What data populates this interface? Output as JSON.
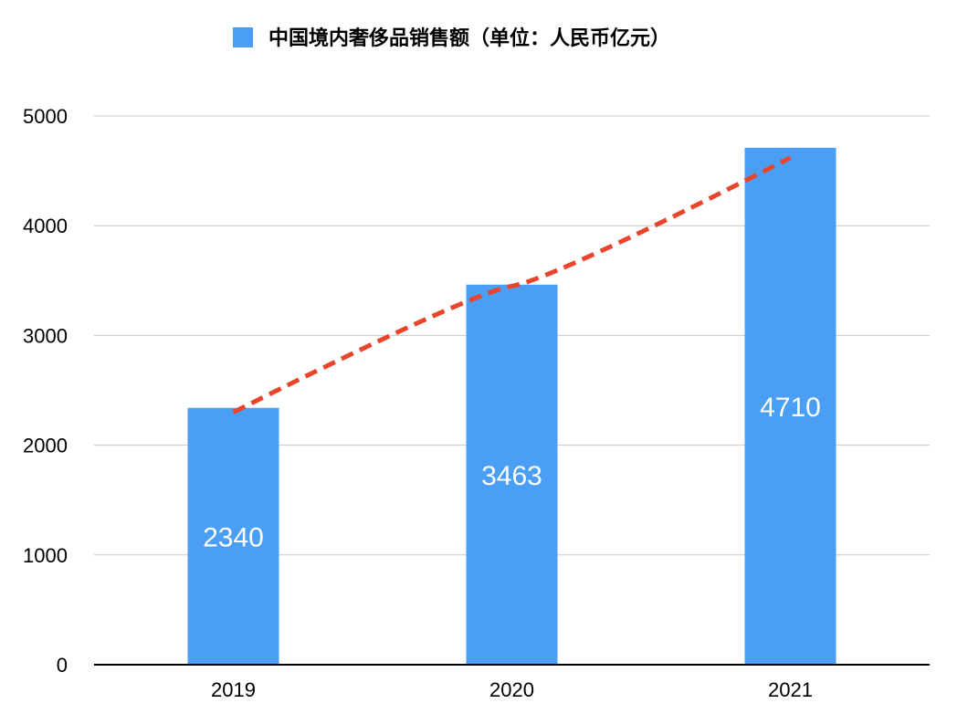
{
  "chart_data": {
    "type": "bar",
    "title": "",
    "xlabel": "",
    "ylabel": "",
    "categories": [
      "2019",
      "2020",
      "2021"
    ],
    "series": [
      {
        "name": "中国境内奢侈品销售额（单位：人民币亿元）",
        "values": [
          2340,
          3463,
          4710
        ],
        "data_labels": [
          "2340",
          "3463",
          "4710"
        ],
        "color": "#4a9ff5"
      }
    ],
    "ylim": [
      0,
      5000
    ],
    "yticks": [
      0,
      1000,
      2000,
      3000,
      4000,
      5000
    ],
    "ytick_labels": [
      "0",
      "1000",
      "2000",
      "3000",
      "4000",
      "5000"
    ],
    "grid": true,
    "legend_position": "top",
    "trendline": {
      "style": "dashed",
      "color": "#e8452c",
      "points": [
        {
          "x": "2019",
          "y": 2300
        },
        {
          "x": "2020",
          "y": 3450
        },
        {
          "x": "2021",
          "y": 4620
        }
      ]
    }
  }
}
